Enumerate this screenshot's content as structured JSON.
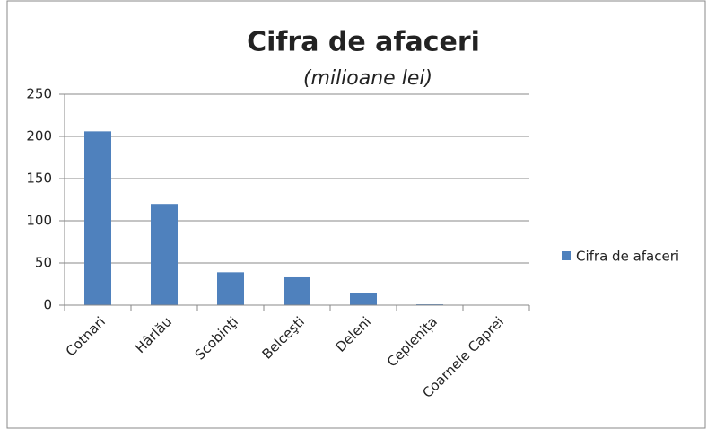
{
  "chart_data": {
    "type": "bar",
    "title": "Cifra de afaceri",
    "subtitle": "(milioane lei)",
    "categories": [
      "Cotnari",
      "Hârlău",
      "Scobinţi",
      "Belceşti",
      "Deleni",
      "Ceplenița",
      "Coarnele Caprei"
    ],
    "series": [
      {
        "name": "Cifra de afaceri",
        "color": "#4f81bd",
        "values": [
          206,
          120,
          39,
          33,
          14,
          1,
          0
        ]
      }
    ],
    "ylim": [
      0,
      250
    ],
    "yticks": [
      0,
      50,
      100,
      150,
      200,
      250
    ],
    "grid": true,
    "legend": "right"
  }
}
